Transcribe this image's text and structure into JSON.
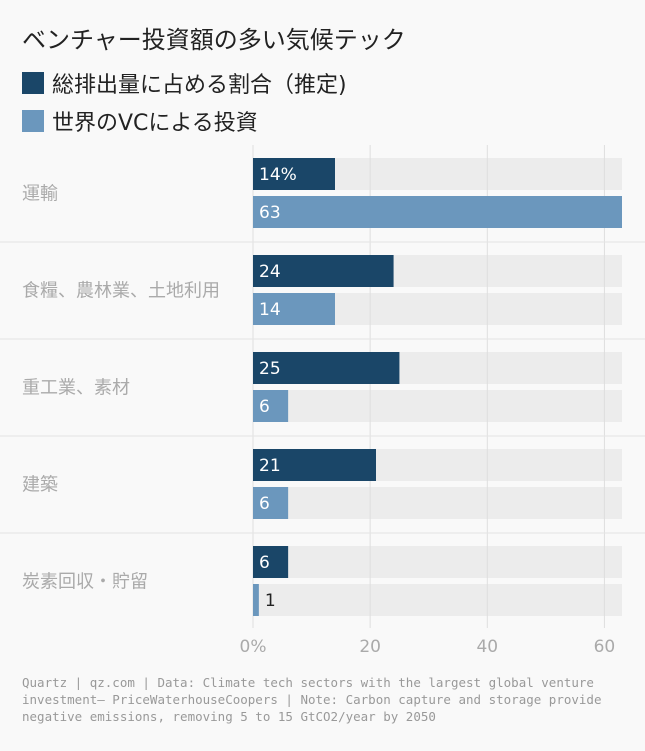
{
  "header": {
    "title": "ベンチャー投資額の多い気候テック"
  },
  "legend": {
    "items": [
      {
        "label": "総排出量に占める割合（推定)",
        "color": "#1a4668"
      },
      {
        "label": "世界のVCによる投資",
        "color": "#6b97bd"
      }
    ]
  },
  "chart_data": {
    "type": "bar",
    "orientation": "horizontal",
    "categories": [
      "運輸",
      "食糧、農林業、土地利用",
      "重工業、素材",
      "建築",
      "炭素回収・貯留"
    ],
    "series": [
      {
        "name": "総排出量に占める割合（推定)",
        "values": [
          14,
          24,
          25,
          21,
          6
        ],
        "color": "#1a4668"
      },
      {
        "name": "世界のVCによる投資",
        "values": [
          63,
          14,
          6,
          6,
          1
        ],
        "color": "#6b97bd"
      }
    ],
    "first_label_suffix": "%",
    "xlim": [
      0,
      63
    ],
    "x_ticks": [
      0,
      20,
      40,
      60
    ],
    "x_tick_labels": [
      "0%",
      "20",
      "40",
      "60"
    ],
    "grid": true
  },
  "footer": {
    "lines": [
      "Quartz | qz.com | Data: Climate tech sectors with the largest global venture",
      "investment– PriceWaterhouseCoopers | Note: Carbon capture and storage provide",
      "negative emissions, removing 5 to 15 GtCO2/year by 2050"
    ]
  }
}
